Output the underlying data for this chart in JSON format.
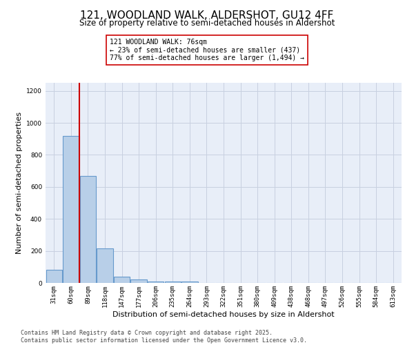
{
  "title_line1": "121, WOODLAND WALK, ALDERSHOT, GU12 4FF",
  "title_line2": "Size of property relative to semi-detached houses in Aldershot",
  "xlabel": "Distribution of semi-detached houses by size in Aldershot",
  "ylabel": "Number of semi-detached properties",
  "categories": [
    "31sqm",
    "60sqm",
    "89sqm",
    "118sqm",
    "147sqm",
    "177sqm",
    "206sqm",
    "235sqm",
    "264sqm",
    "293sqm",
    "322sqm",
    "351sqm",
    "380sqm",
    "409sqm",
    "438sqm",
    "468sqm",
    "497sqm",
    "526sqm",
    "555sqm",
    "584sqm",
    "613sqm"
  ],
  "values": [
    80,
    920,
    670,
    215,
    38,
    20,
    10,
    10,
    10,
    0,
    0,
    0,
    0,
    0,
    0,
    0,
    0,
    0,
    0,
    0,
    0
  ],
  "bar_color": "#b8cfe8",
  "bar_edge_color": "#6699cc",
  "bar_edge_width": 0.8,
  "grid_color": "#c8d0e0",
  "bg_color": "#e8eef8",
  "property_label": "121 WOODLAND WALK: 76sqm",
  "smaller_pct": "23% of semi-detached houses are smaller (437)",
  "larger_pct": "77% of semi-detached houses are larger (1,494)",
  "annotation_box_color": "#cc0000",
  "ylim": [
    0,
    1250
  ],
  "yticks": [
    0,
    200,
    400,
    600,
    800,
    1000,
    1200
  ],
  "footer_line1": "Contains HM Land Registry data © Crown copyright and database right 2025.",
  "footer_line2": "Contains public sector information licensed under the Open Government Licence v3.0.",
  "title_fontsize": 11,
  "subtitle_fontsize": 8.5,
  "axis_label_fontsize": 8,
  "tick_fontsize": 6.5,
  "footer_fontsize": 6,
  "ann_fontsize": 7
}
